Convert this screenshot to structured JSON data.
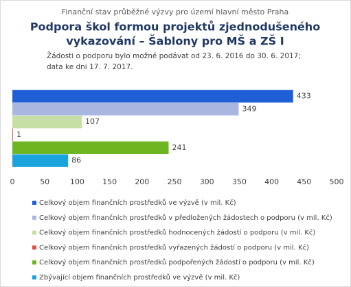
{
  "chart_data": {
    "type": "bar",
    "horizontal": true,
    "supertitle": "Finanční stav průběžné výzvy pro území hlavní město Praha",
    "title": [
      "Podpora škol formou projektů zjednodušeného",
      "vykazování – Šablony pro MŠ a ZŠ I"
    ],
    "subtitle": [
      "Žádosti o podporu bylo možné  podávat od 23. 6. 2016 do 30. 6. 2017;",
      "data ke dni 17. 7. 2017."
    ],
    "series": [
      {
        "name": "Celkový objem finančních prostředků ve výzvě (v mil. Kč)",
        "color": "#1f5fd6",
        "values": [
          433
        ]
      },
      {
        "name": "Celkový objem finančních prostředků v předložených žádostech o podporu (v mil. Kč)",
        "color": "#a9b6df",
        "values": [
          349
        ]
      },
      {
        "name": "Celkový objem finančních prostředků hodnocených žádostí o podporu (v mil. Kč)",
        "color": "#c5dfa5",
        "values": [
          107
        ]
      },
      {
        "name": "Celkový objem finančních prostředků vyřazených žádostí o podporu (v mil. Kč)",
        "color": "#d9534f",
        "values": [
          1
        ]
      },
      {
        "name": "Celkový objem finančních prostředků podpořených žádostí o podporu (v mil. Kč)",
        "color": "#6db521",
        "values": [
          241
        ]
      },
      {
        "name": "Zbývající objem finančních prostředků ve výzvě (v mil. Kč)",
        "color": "#1ba3dd",
        "values": [
          86
        ]
      }
    ],
    "xlim": [
      0,
      500
    ],
    "xticks": [
      0,
      50,
      100,
      150,
      200,
      250,
      300,
      350,
      400,
      450,
      500
    ],
    "grid": false,
    "legend": "bottom"
  }
}
